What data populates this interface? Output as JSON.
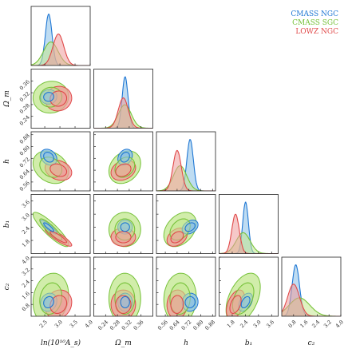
{
  "chart_data": {
    "type": "corner",
    "parameters": [
      {
        "key": "lnAs",
        "label": "ln(10¹⁰A_s)",
        "range": [
          2.05,
          4.0
        ],
        "ticks": [
          "2.5",
          "3.0",
          "3.5",
          "4.0"
        ],
        "tick_values": [
          2.5,
          3.0,
          3.5,
          4.0
        ]
      },
      {
        "key": "Om",
        "label": "Ω_m",
        "range": [
          0.2,
          0.4
        ],
        "ticks": [
          "0.24",
          "0.28",
          "0.32",
          "0.36"
        ],
        "tick_values": [
          0.24,
          0.28,
          0.32,
          0.36
        ]
      },
      {
        "key": "h",
        "label": "h",
        "range": [
          0.5,
          0.9
        ],
        "ticks": [
          "0.56",
          "0.64",
          "0.72",
          "0.80",
          "0.88"
        ],
        "tick_values": [
          0.56,
          0.64,
          0.72,
          0.8,
          0.88
        ]
      },
      {
        "key": "b1",
        "label": "b₁",
        "range": [
          1.2,
          3.9
        ],
        "ticks": [
          "1.8",
          "2.4",
          "3.0",
          "3.6"
        ],
        "tick_values": [
          1.8,
          2.4,
          3.0,
          3.6
        ]
      },
      {
        "key": "c2",
        "label": "c₂",
        "range": [
          0.0,
          4.0
        ],
        "ticks": [
          "0.8",
          "1.6",
          "2.4",
          "3.2",
          "4.0"
        ],
        "tick_values": [
          0.8,
          1.6,
          2.4,
          3.2,
          4.0
        ]
      }
    ],
    "series": [
      {
        "name": "CMASS NGC",
        "color": "#1f77d4",
        "fill": "#88bfe8",
        "mean": {
          "lnAs": 2.63,
          "Om": 0.306,
          "h": 0.728,
          "b1": 2.41,
          "c2": 0.95
        },
        "sigma": {
          "lnAs": 0.11,
          "Om": 0.01,
          "h": 0.022,
          "b1": 0.13,
          "c2": 0.25
        }
      },
      {
        "name": "CMASS SGC",
        "color": "#77c23a",
        "fill": "#c2e78e",
        "mean": {
          "lnAs": 2.7,
          "Om": 0.305,
          "h": 0.66,
          "b1": 2.3,
          "c2": 1.2
        },
        "sigma": {
          "lnAs": 0.24,
          "Om": 0.022,
          "h": 0.045,
          "b1": 0.32,
          "c2": 0.7
        }
      },
      {
        "name": "LOWZ NGC",
        "color": "#e04848",
        "fill": "#ef9a9a",
        "mean": {
          "lnAs": 2.95,
          "Om": 0.3,
          "h": 0.64,
          "b1": 1.95,
          "c2": 0.8
        },
        "sigma": {
          "lnAs": 0.18,
          "Om": 0.017,
          "h": 0.028,
          "b1": 0.17,
          "c2": 0.4
        }
      }
    ],
    "legend_position": "top-right"
  },
  "legend": {
    "items": [
      {
        "label": "CMASS NGC",
        "color": "#1f77d4"
      },
      {
        "label": "CMASS SGC",
        "color": "#77c23a"
      },
      {
        "label": "LOWZ NGC",
        "color": "#e04848"
      }
    ]
  }
}
